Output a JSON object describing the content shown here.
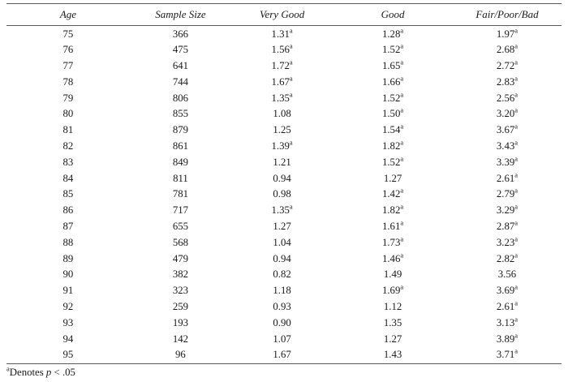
{
  "table": {
    "columns": [
      "Age",
      "Sample Size",
      "Very Good",
      "Good",
      "Fair/Poor/Bad"
    ],
    "significance_marker": "a",
    "rows": [
      [
        "75",
        "366",
        "1.31^a",
        "1.28^a",
        "1.97^a"
      ],
      [
        "76",
        "475",
        "1.56^a",
        "1.52^a",
        "2.68^a"
      ],
      [
        "77",
        "641",
        "1.72^a",
        "1.65^a",
        "2.72^a"
      ],
      [
        "78",
        "744",
        "1.67^a",
        "1.66^a",
        "2.83^a"
      ],
      [
        "79",
        "806",
        "1.35^a",
        "1.52^a",
        "2.56^a"
      ],
      [
        "80",
        "855",
        "1.08",
        "1.50^a",
        "3.20^a"
      ],
      [
        "81",
        "879",
        "1.25",
        "1.54^a",
        "3.67^a"
      ],
      [
        "82",
        "861",
        "1.39^a",
        "1.82^a",
        "3.43^a"
      ],
      [
        "83",
        "849",
        "1.21",
        "1.52^a",
        "3.39^a"
      ],
      [
        "84",
        "811",
        "0.94",
        "1.27",
        "2.61^a"
      ],
      [
        "85",
        "781",
        "0.98",
        "1.42^a",
        "2.79^a"
      ],
      [
        "86",
        "717",
        "1.35^a",
        "1.82^a",
        "3.29^a"
      ],
      [
        "87",
        "655",
        "1.27",
        "1.61^a",
        "2.87^a"
      ],
      [
        "88",
        "568",
        "1.04",
        "1.73^a",
        "3.23^a"
      ],
      [
        "89",
        "479",
        "0.94",
        "1.46^a",
        "2.82^a"
      ],
      [
        "90",
        "382",
        "0.82",
        "1.49",
        "3.56"
      ],
      [
        "91",
        "323",
        "1.18",
        "1.69^a",
        "3.69^a"
      ],
      [
        "92",
        "259",
        "0.93",
        "1.12",
        "2.61^a"
      ],
      [
        "93",
        "193",
        "0.90",
        "1.35",
        "3.13^a"
      ],
      [
        "94",
        "142",
        "1.07",
        "1.27",
        "3.89^a"
      ],
      [
        "95",
        "96",
        "1.67",
        "1.43",
        "3.71^a"
      ]
    ]
  },
  "footnote": {
    "sup": "a",
    "denotes": "Denotes ",
    "p_symbol": "p",
    "rest": " < .05"
  },
  "colors": {
    "rule": "#5a5a5a",
    "text": "#1a1a1a",
    "background": "#ffffff"
  }
}
